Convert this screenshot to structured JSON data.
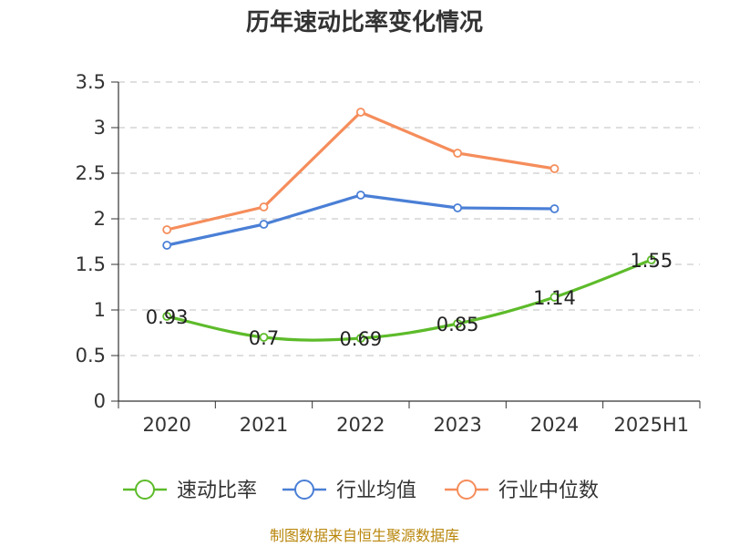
{
  "chart_data": {
    "type": "line",
    "title": "历年速动比率变化情况",
    "categories": [
      "2020",
      "2021",
      "2022",
      "2023",
      "2024",
      "2025H1"
    ],
    "ylim": [
      0,
      3.5
    ],
    "yticks": [
      "0",
      "0.5",
      "1",
      "1.5",
      "2",
      "2.5",
      "3",
      "3.5"
    ],
    "grid": true,
    "legend_position": "bottom",
    "series": [
      {
        "name": "速动比率",
        "color": "#5dbb2a",
        "values": [
          0.93,
          0.7,
          0.69,
          0.85,
          1.14,
          1.55
        ],
        "labels": [
          "0.93",
          "0.7",
          "0.69",
          "0.85",
          "1.14",
          "1.55"
        ]
      },
      {
        "name": "行业均值",
        "color": "#4a7fd6",
        "values": [
          1.71,
          1.94,
          2.26,
          2.12,
          2.11,
          null
        ]
      },
      {
        "name": "行业中位数",
        "color": "#f58d5b",
        "values": [
          1.88,
          2.13,
          3.17,
          2.72,
          2.55,
          null
        ]
      }
    ]
  },
  "source": "制图数据来自恒生聚源数据库"
}
